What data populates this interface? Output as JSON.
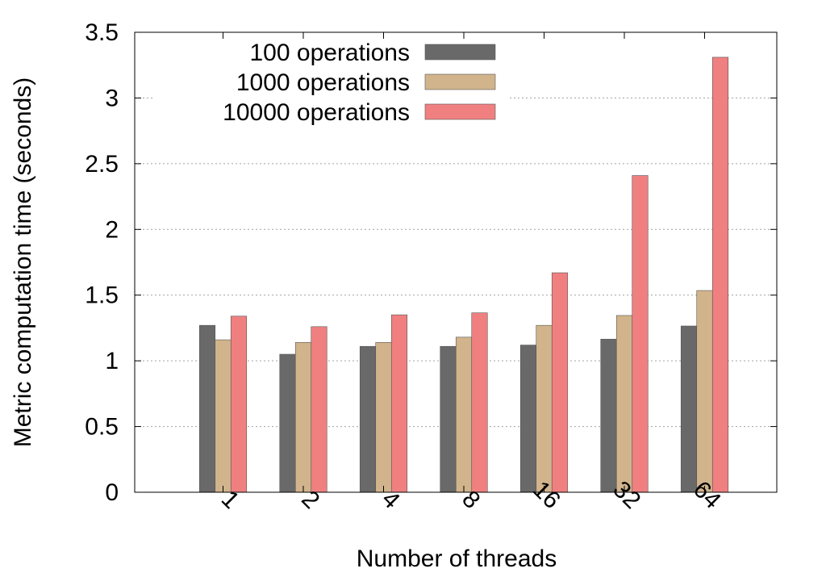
{
  "chart_data": {
    "type": "bar",
    "title": "",
    "xlabel": "Number of threads",
    "ylabel": "Metric computation time (seconds)",
    "categories": [
      "1",
      "2",
      "4",
      "8",
      "16",
      "32",
      "64"
    ],
    "ylim": [
      0,
      3.5
    ],
    "yticks": [
      "0",
      "0.5",
      "1",
      "1.5",
      "2",
      "2.5",
      "3",
      "3.5"
    ],
    "grid": true,
    "legend_position": "top-left",
    "series": [
      {
        "name": "100 operations",
        "color": "#696969",
        "values": [
          1.27,
          1.05,
          1.11,
          1.11,
          1.12,
          1.165,
          1.265
        ]
      },
      {
        "name": "1000 operations",
        "color": "#d2b48c",
        "values": [
          1.16,
          1.14,
          1.14,
          1.18,
          1.27,
          1.345,
          1.535
        ]
      },
      {
        "name": "10000 operations",
        "color": "#f08080",
        "values": [
          1.34,
          1.26,
          1.35,
          1.365,
          1.67,
          2.41,
          3.31
        ]
      }
    ]
  }
}
